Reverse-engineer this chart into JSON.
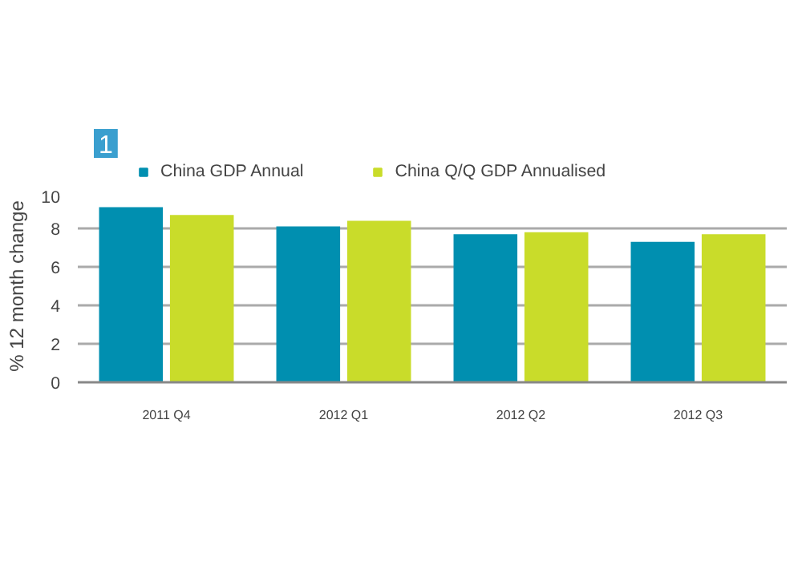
{
  "chart_data": {
    "type": "bar",
    "ylabel": "% 12 month change",
    "annotations": [
      "1"
    ],
    "categories": [
      "2011 Q4",
      "2012 Q1",
      "2012 Q2",
      "2012 Q3"
    ],
    "series": [
      {
        "name": "China GDP Annual",
        "color": "#008fb0",
        "values": [
          9.1,
          8.1,
          7.7,
          7.3
        ]
      },
      {
        "name": "China Q/Q GDP Annualised",
        "color": "#c9dc2a",
        "values": [
          8.7,
          8.4,
          7.8,
          7.7
        ]
      }
    ],
    "ylim": [
      0,
      10
    ],
    "yticks": [
      0,
      2,
      4,
      6,
      8,
      10
    ],
    "grid": "y",
    "legend": "top"
  }
}
